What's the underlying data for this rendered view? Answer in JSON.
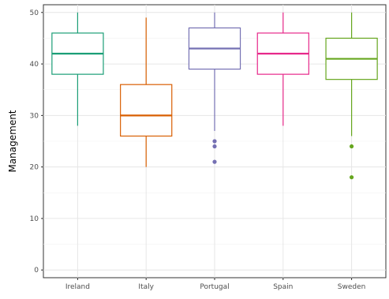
{
  "chart_data": {
    "type": "box",
    "title": "",
    "xlabel": "",
    "ylabel": "Management",
    "ylim": [
      -1.5,
      51.5
    ],
    "yticks": [
      0,
      10,
      20,
      30,
      40,
      50
    ],
    "grid": true,
    "legend": "none",
    "categories": [
      "Ireland",
      "Italy",
      "Portugal",
      "Spain",
      "Sweden"
    ],
    "boxes": [
      {
        "category": "Ireland",
        "color": "#1b9e77",
        "whisker_low": 28,
        "q1": 38,
        "median": 42,
        "q3": 46,
        "whisker_high": 50,
        "outliers": []
      },
      {
        "category": "Italy",
        "color": "#d95f02",
        "whisker_low": 20,
        "q1": 26,
        "median": 30,
        "q3": 36,
        "whisker_high": 49,
        "outliers": []
      },
      {
        "category": "Portugal",
        "color": "#7570b3",
        "whisker_low": 27,
        "q1": 39,
        "median": 43,
        "q3": 47,
        "whisker_high": 50,
        "outliers": [
          25,
          24,
          21
        ]
      },
      {
        "category": "Spain",
        "color": "#e7298a",
        "whisker_low": 28,
        "q1": 38,
        "median": 42,
        "q3": 46,
        "whisker_high": 50,
        "outliers": []
      },
      {
        "category": "Sweden",
        "color": "#66a61e",
        "whisker_low": 26,
        "q1": 37,
        "median": 41,
        "q3": 45,
        "whisker_high": 50,
        "outliers": [
          24,
          18
        ]
      }
    ]
  }
}
